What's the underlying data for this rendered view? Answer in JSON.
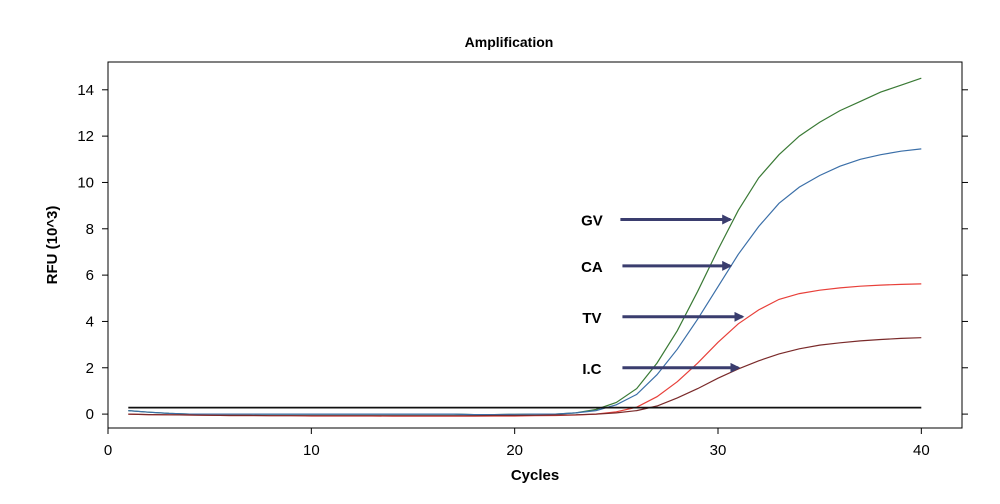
{
  "chart_data": {
    "type": "line",
    "title": "Amplification",
    "xlabel": "Cycles",
    "ylabel": "RFU (10^3)",
    "xlim": [
      0,
      42
    ],
    "ylim": [
      -0.6,
      15.2
    ],
    "xticks": [
      0,
      10,
      20,
      30,
      40
    ],
    "yticks": [
      0,
      2,
      4,
      6,
      8,
      10,
      12,
      14
    ],
    "grid": false,
    "x": [
      1,
      2,
      3,
      4,
      5,
      6,
      7,
      8,
      9,
      10,
      11,
      12,
      13,
      14,
      15,
      16,
      17,
      18,
      19,
      20,
      21,
      22,
      23,
      24,
      25,
      26,
      27,
      28,
      29,
      30,
      31,
      32,
      33,
      34,
      35,
      36,
      37,
      38,
      39,
      40
    ],
    "series": [
      {
        "color": "#3a7a35",
        "values": [
          0.15,
          0.08,
          0.03,
          0,
          0,
          0,
          0,
          0,
          0,
          0,
          0,
          0,
          0,
          0,
          0,
          0,
          0,
          -0.02,
          -0.02,
          -0.01,
          0,
          0,
          0.05,
          0.2,
          0.5,
          1.1,
          2.2,
          3.6,
          5.3,
          7.1,
          8.8,
          10.2,
          11.2,
          12.0,
          12.6,
          13.1,
          13.5,
          13.9,
          14.2,
          14.5
        ]
      },
      {
        "color": "#3b6fa8",
        "values": [
          0.15,
          0.08,
          0.03,
          0,
          0,
          0,
          0,
          0,
          0,
          0,
          0,
          0,
          0,
          0,
          0,
          0,
          0,
          -0.02,
          -0.02,
          -0.01,
          0,
          0,
          0.05,
          0.15,
          0.4,
          0.85,
          1.7,
          2.8,
          4.1,
          5.5,
          6.9,
          8.1,
          9.1,
          9.8,
          10.3,
          10.7,
          11.0,
          11.2,
          11.35,
          11.45
        ]
      },
      {
        "color": "#e8403a",
        "values": [
          0,
          -0.02,
          -0.03,
          -0.04,
          -0.05,
          -0.06,
          -0.06,
          -0.07,
          -0.07,
          -0.08,
          -0.08,
          -0.08,
          -0.08,
          -0.09,
          -0.09,
          -0.09,
          -0.09,
          -0.09,
          -0.08,
          -0.08,
          -0.07,
          -0.06,
          -0.04,
          0,
          0.1,
          0.3,
          0.75,
          1.4,
          2.2,
          3.1,
          3.9,
          4.5,
          4.95,
          5.2,
          5.35,
          5.45,
          5.52,
          5.57,
          5.6,
          5.62
        ]
      },
      {
        "color": "#7a2a2a",
        "values": [
          0,
          -0.02,
          -0.03,
          -0.04,
          -0.05,
          -0.06,
          -0.06,
          -0.07,
          -0.07,
          -0.07,
          -0.07,
          -0.07,
          -0.07,
          -0.07,
          -0.07,
          -0.07,
          -0.07,
          -0.07,
          -0.06,
          -0.06,
          -0.05,
          -0.04,
          -0.03,
          0,
          0.05,
          0.15,
          0.35,
          0.7,
          1.1,
          1.55,
          1.95,
          2.3,
          2.6,
          2.82,
          2.98,
          3.08,
          3.16,
          3.22,
          3.27,
          3.3
        ]
      },
      {
        "color": "#111111",
        "values": [
          0.28,
          0.28,
          0.28,
          0.28,
          0.28,
          0.28,
          0.28,
          0.28,
          0.28,
          0.28,
          0.28,
          0.28,
          0.28,
          0.28,
          0.28,
          0.28,
          0.28,
          0.28,
          0.28,
          0.28,
          0.28,
          0.28,
          0.28,
          0.28,
          0.28,
          0.28,
          0.28,
          0.28,
          0.28,
          0.28,
          0.28,
          0.28,
          0.28,
          0.28,
          0.28,
          0.28,
          0.28,
          0.28,
          0.28,
          0.28
        ]
      }
    ],
    "annotations": [
      {
        "text": "GV",
        "text_xy": [
          23.8,
          8.4
        ],
        "arrow_from": [
          25.2,
          8.4
        ],
        "arrow_to": [
          30.6,
          8.4
        ]
      },
      {
        "text": "CA",
        "text_xy": [
          23.8,
          6.4
        ],
        "arrow_from": [
          25.3,
          6.4
        ],
        "arrow_to": [
          30.6,
          6.4
        ]
      },
      {
        "text": "TV",
        "text_xy": [
          23.8,
          4.2
        ],
        "arrow_from": [
          25.3,
          4.2
        ],
        "arrow_to": [
          31.2,
          4.2
        ]
      },
      {
        "text": "I.C",
        "text_xy": [
          23.8,
          2.0
        ],
        "arrow_from": [
          25.3,
          2.0
        ],
        "arrow_to": [
          31.0,
          2.0
        ]
      }
    ],
    "arrow_color": "#3a3d6e"
  }
}
